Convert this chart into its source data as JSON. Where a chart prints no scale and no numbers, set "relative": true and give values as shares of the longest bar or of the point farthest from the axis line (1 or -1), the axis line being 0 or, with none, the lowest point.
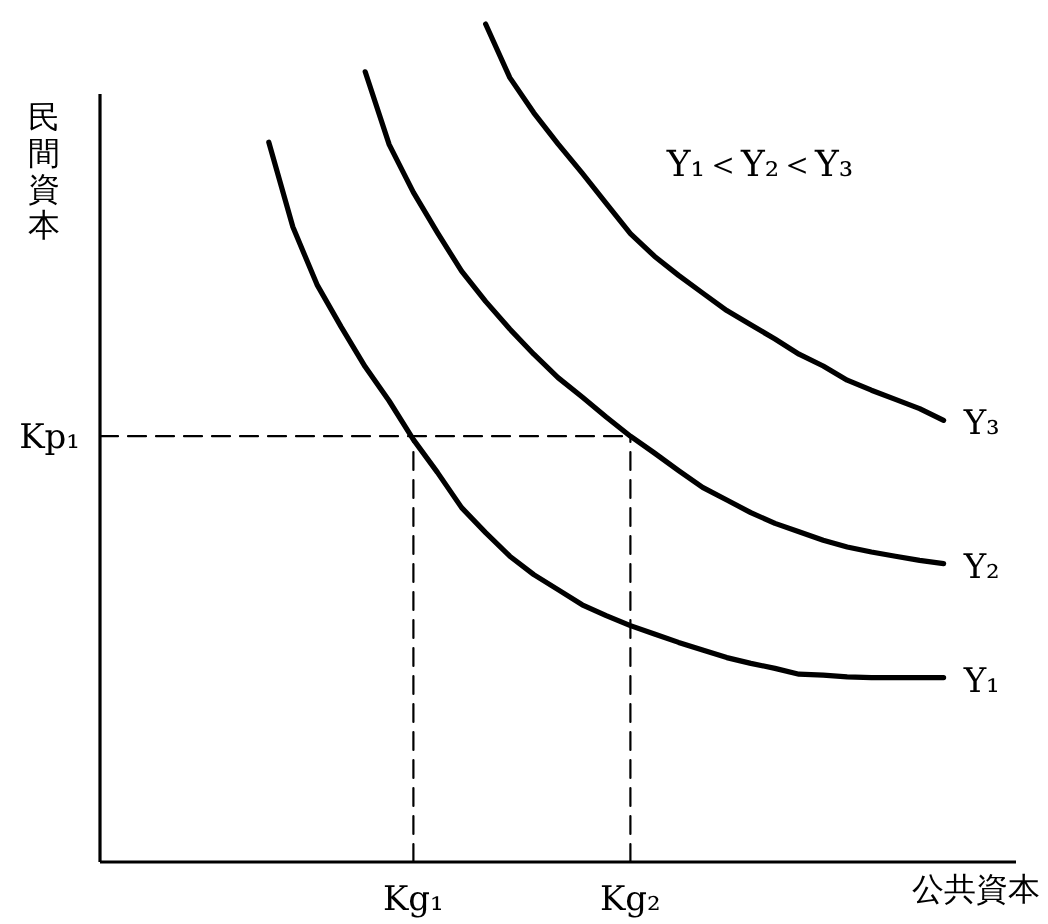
{
  "chart_data": {
    "type": "line",
    "relative": true,
    "xlabel": "公共資本",
    "ylabel": "民間資本",
    "marker": "none",
    "categories": [
      null,
      null,
      null,
      null,
      null,
      null,
      null,
      null,
      null,
      null,
      null,
      null,
      null,
      "Kg₁",
      null,
      null,
      null,
      null,
      null,
      null,
      null,
      null,
      "Kg₂",
      null,
      null,
      null,
      null,
      null,
      null,
      null,
      null,
      null,
      null,
      null,
      null,
      null,
      null,
      null,
      null
    ],
    "annotations": [
      "Y₁＜Y₂＜Y₃",
      "Kp₁"
    ],
    "series": [
      {
        "name": "Y₁",
        "color": "#000000",
        "line_style": "solid",
        "values": [
          null,
          null,
          null,
          null,
          null,
          null,
          null,
          0.859,
          0.758,
          0.689,
          0.639,
          0.591,
          0.55,
          0.504,
          0.465,
          0.423,
          0.393,
          0.365,
          0.343,
          0.325,
          0.307,
          0.294,
          0.282,
          0.272,
          0.262,
          0.253,
          0.244,
          0.237,
          0.231,
          0.224,
          0.223,
          0.221,
          0.22,
          0.22,
          0.22,
          0.22,
          null,
          null,
          null
        ]
      },
      {
        "name": "Y₂",
        "color": "#000000",
        "line_style": "solid",
        "values": [
          null,
          null,
          null,
          null,
          null,
          null,
          null,
          null,
          null,
          null,
          null,
          0.943,
          0.856,
          0.799,
          0.751,
          0.705,
          0.669,
          0.636,
          0.606,
          0.578,
          0.555,
          0.531,
          0.508,
          0.488,
          0.467,
          0.447,
          0.432,
          0.417,
          0.404,
          0.394,
          0.384,
          0.376,
          0.37,
          0.365,
          0.36,
          0.356,
          null,
          null,
          null
        ]
      },
      {
        "name": "Y₃",
        "color": "#000000",
        "line_style": "solid",
        "values": [
          null,
          null,
          null,
          null,
          null,
          null,
          null,
          null,
          null,
          null,
          null,
          null,
          null,
          null,
          null,
          null,
          1,
          0.936,
          0.894,
          0.857,
          0.822,
          0.786,
          0.75,
          0.723,
          0.7,
          0.679,
          0.658,
          0.641,
          0.624,
          0.606,
          0.592,
          0.575,
          0.563,
          0.552,
          0.541,
          0.527,
          null,
          null,
          null
        ]
      },
      {
        "color": "#000000",
        "line_style": "dashed",
        "values": [
          0.508,
          0.508,
          0.508,
          0.508,
          0.508,
          0.508,
          0.508,
          0.508,
          0.508,
          0.508,
          0.508,
          0.508,
          0.508,
          0.508,
          0.508,
          0.508,
          0.508,
          0.508,
          0.508,
          0.508,
          0.508,
          0.508,
          0.508,
          null,
          null,
          null,
          null,
          null,
          null,
          null,
          null,
          null,
          null,
          null,
          null,
          null,
          null,
          null,
          null
        ]
      },
      {
        "color": "#000000",
        "line_style": "dashed",
        "x": [
          "Kg₁",
          "Kg₁"
        ],
        "values": [
          0,
          0.504
        ]
      },
      {
        "color": "#000000",
        "line_style": "dashed",
        "x": [
          "Kg₂",
          "Kg₂"
        ],
        "values": [
          0,
          0.508
        ]
      }
    ]
  }
}
